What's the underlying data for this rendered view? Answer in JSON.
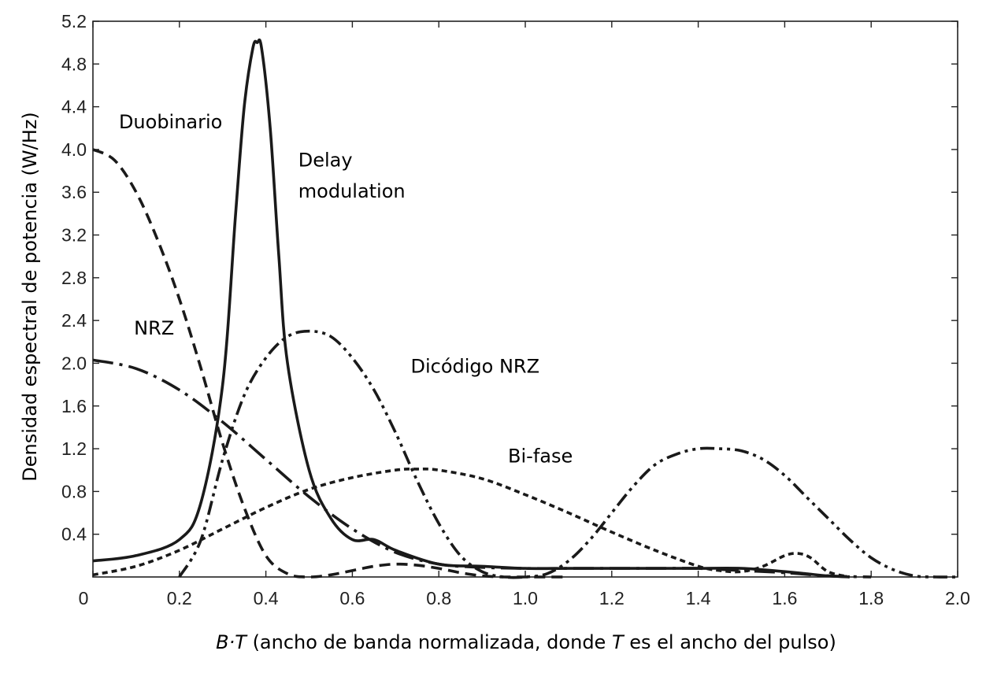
{
  "chart_data": {
    "type": "line",
    "xlabel": {
      "var": "B·T",
      "text_a": " (ancho de banda normalizada, donde ",
      "var_t": "T",
      "text_b": " es el ancho del pulso)"
    },
    "ylabel": "Densidad espectral de potencia (W/Hz)",
    "xlim": [
      0,
      2.0
    ],
    "ylim": [
      0,
      5.2
    ],
    "x_ticks": [
      "0",
      "0.2",
      "0.4",
      "0.6",
      "0.8",
      "1.0",
      "1.2",
      "1.4",
      "1.6",
      "1.8",
      "2.0"
    ],
    "y_ticks": [
      "0.4",
      "0.8",
      "1.2",
      "1.6",
      "2.0",
      "2.4",
      "2.8",
      "3.2",
      "3.6",
      "4.0",
      "4.4",
      "4.8",
      "5.2"
    ],
    "grid": false,
    "series": [
      {
        "name": "Duobinario",
        "style": "dashed",
        "x": [
          0,
          0.05,
          0.1,
          0.15,
          0.2,
          0.25,
          0.3,
          0.35,
          0.4,
          0.45,
          0.5,
          0.55,
          0.6,
          0.65,
          0.7,
          0.75,
          0.8,
          0.85,
          0.9,
          0.95,
          1.0,
          1.05,
          1.1
        ],
        "y": [
          4.0,
          3.9,
          3.6,
          3.15,
          2.6,
          1.95,
          1.25,
          0.65,
          0.2,
          0.03,
          0.0,
          0.02,
          0.06,
          0.1,
          0.12,
          0.11,
          0.08,
          0.04,
          0.01,
          0.0,
          0.0,
          0.0,
          0.0
        ]
      },
      {
        "name": "NRZ",
        "style": "long-dash-dot",
        "x": [
          0,
          0.1,
          0.2,
          0.3,
          0.4,
          0.5,
          0.6,
          0.7,
          0.8,
          0.9,
          1.0,
          1.1,
          1.2,
          1.3,
          1.4,
          1.5,
          1.6,
          1.7,
          1.8
        ],
        "y": [
          2.03,
          1.95,
          1.75,
          1.45,
          1.1,
          0.75,
          0.45,
          0.23,
          0.12,
          0.09,
          0.08,
          0.08,
          0.08,
          0.08,
          0.08,
          0.06,
          0.04,
          0.01,
          0.0
        ]
      },
      {
        "name": "Delay modulation",
        "style": "solid",
        "x": [
          0,
          0.1,
          0.2,
          0.25,
          0.3,
          0.33,
          0.35,
          0.37,
          0.38,
          0.39,
          0.41,
          0.43,
          0.45,
          0.5,
          0.55,
          0.6,
          0.65,
          0.7,
          0.8,
          0.9,
          1.0,
          1.1,
          1.2,
          1.3,
          1.4,
          1.5,
          1.6,
          1.65,
          1.7,
          1.75
        ],
        "y": [
          0.15,
          0.2,
          0.35,
          0.7,
          1.8,
          3.4,
          4.4,
          4.95,
          5.0,
          4.95,
          4.2,
          3.0,
          2.0,
          1.0,
          0.55,
          0.35,
          0.35,
          0.25,
          0.12,
          0.1,
          0.08,
          0.08,
          0.08,
          0.08,
          0.08,
          0.08,
          0.05,
          0.03,
          0.01,
          0.0
        ]
      },
      {
        "name": "Dicódigo NRZ",
        "style": "dash-dot-dot",
        "x": [
          0.2,
          0.25,
          0.3,
          0.35,
          0.4,
          0.45,
          0.5,
          0.55,
          0.6,
          0.65,
          0.7,
          0.75,
          0.8,
          0.85,
          0.9,
          0.95,
          1.0,
          1.05,
          1.1,
          1.15,
          1.2,
          1.25,
          1.3,
          1.35,
          1.4,
          1.45,
          1.5,
          1.55,
          1.6,
          1.65,
          1.7,
          1.75,
          1.8,
          1.85,
          1.9,
          1.95,
          2.0
        ],
        "y": [
          0.0,
          0.35,
          1.1,
          1.7,
          2.05,
          2.25,
          2.3,
          2.25,
          2.05,
          1.75,
          1.35,
          0.9,
          0.5,
          0.2,
          0.05,
          0.0,
          0.0,
          0.03,
          0.15,
          0.35,
          0.6,
          0.85,
          1.05,
          1.15,
          1.2,
          1.2,
          1.18,
          1.1,
          0.95,
          0.75,
          0.55,
          0.35,
          0.18,
          0.07,
          0.01,
          0.0,
          0.0
        ]
      },
      {
        "name": "Bi-fase",
        "style": "short-dash",
        "x": [
          0,
          0.1,
          0.2,
          0.3,
          0.4,
          0.5,
          0.6,
          0.7,
          0.75,
          0.8,
          0.9,
          1.0,
          1.1,
          1.2,
          1.3,
          1.4,
          1.45,
          1.5,
          1.55,
          1.6,
          1.63,
          1.66,
          1.7,
          1.75
        ],
        "y": [
          0.02,
          0.1,
          0.25,
          0.45,
          0.65,
          0.82,
          0.93,
          1.0,
          1.01,
          1.0,
          0.92,
          0.77,
          0.6,
          0.42,
          0.25,
          0.1,
          0.06,
          0.05,
          0.1,
          0.2,
          0.22,
          0.18,
          0.05,
          0.0
        ]
      }
    ],
    "annotations": [
      {
        "text": "Duobinario",
        "x": 0.06,
        "y": 4.2
      },
      {
        "text": "Delay",
        "x": 0.475,
        "y": 3.84
      },
      {
        "text": "modulation",
        "x": 0.475,
        "y": 3.55
      },
      {
        "text": "NRZ",
        "x": 0.095,
        "y": 2.27
      },
      {
        "text": "Dicódigo NRZ",
        "x": 0.735,
        "y": 1.91
      },
      {
        "text": "Bi-fase",
        "x": 0.96,
        "y": 1.07
      }
    ]
  }
}
